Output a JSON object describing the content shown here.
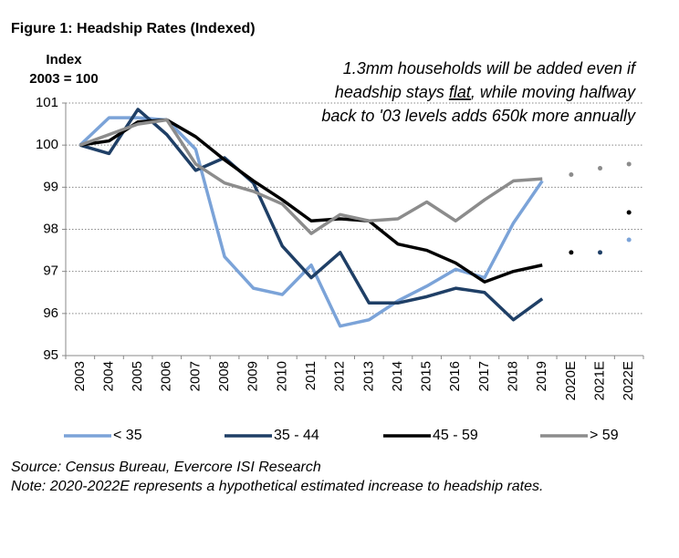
{
  "chart_data": {
    "type": "line",
    "title": "Figure 1: Headship Rates (Indexed)",
    "y_label": [
      "Index",
      "2003 = 100"
    ],
    "annotation": [
      "1.3mm households will be added even if",
      "headship stays",
      "flat",
      ", while moving halfway",
      "back to '03 levels adds 650k more annually"
    ],
    "categories": [
      "2003",
      "2004",
      "2005",
      "2006",
      "2007",
      "2008",
      "2009",
      "2010",
      "2011",
      "2012",
      "2013",
      "2014",
      "2015",
      "2016",
      "2017",
      "2018",
      "2019",
      "2020E",
      "2021E",
      "2022E"
    ],
    "series": [
      {
        "name": "< 35",
        "color": "#7ba3d8",
        "values": [
          100,
          100.65,
          100.65,
          100.6,
          99.9,
          97.35,
          96.6,
          96.45,
          97.15,
          95.7,
          95.85,
          96.3,
          96.65,
          97.05,
          96.85,
          98.15,
          99.15,
          null,
          null,
          null
        ],
        "estimates": [
          null,
          null,
          null,
          null,
          null,
          null,
          null,
          null,
          null,
          null,
          null,
          null,
          null,
          null,
          null,
          null,
          null,
          null,
          null,
          97.75
        ]
      },
      {
        "name": "35 - 44",
        "color": "#1f3f66",
        "values": [
          100,
          99.8,
          100.85,
          100.25,
          99.4,
          99.7,
          99.1,
          97.6,
          96.85,
          97.45,
          96.25,
          96.25,
          96.4,
          96.6,
          96.5,
          95.85,
          96.35,
          null,
          null,
          null
        ],
        "estimates": [
          null,
          null,
          null,
          null,
          null,
          null,
          null,
          null,
          null,
          null,
          null,
          null,
          null,
          null,
          null,
          null,
          null,
          null,
          97.45,
          null
        ]
      },
      {
        "name": "45 - 59",
        "color": "#000000",
        "values": [
          100,
          100.1,
          100.55,
          100.6,
          100.2,
          99.65,
          99.15,
          98.7,
          98.2,
          98.25,
          98.2,
          97.65,
          97.5,
          97.2,
          96.75,
          97.0,
          97.15,
          null,
          null,
          null
        ],
        "estimates": [
          null,
          null,
          null,
          null,
          null,
          null,
          null,
          null,
          null,
          null,
          null,
          null,
          null,
          null,
          null,
          null,
          null,
          97.45,
          null,
          98.4
        ]
      },
      {
        "name": "> 59",
        "color": "#8c8c8c",
        "values": [
          100,
          100.25,
          100.5,
          100.6,
          99.55,
          99.1,
          98.9,
          98.6,
          97.9,
          98.35,
          98.2,
          98.25,
          98.65,
          98.2,
          98.7,
          99.15,
          99.2,
          null,
          null,
          null
        ],
        "estimates": [
          null,
          null,
          null,
          null,
          null,
          null,
          null,
          null,
          null,
          null,
          null,
          null,
          null,
          null,
          null,
          null,
          null,
          99.3,
          99.45,
          99.55
        ]
      }
    ],
    "ylim": [
      95,
      101
    ],
    "yticks": [
      95,
      96,
      97,
      98,
      99,
      100,
      101
    ],
    "grid": true,
    "legend": "bottom",
    "source": "Source: Census Bureau, Evercore ISI Research",
    "note": "Note: 2020-2022E represents a hypothetical estimated increase to headship rates."
  }
}
